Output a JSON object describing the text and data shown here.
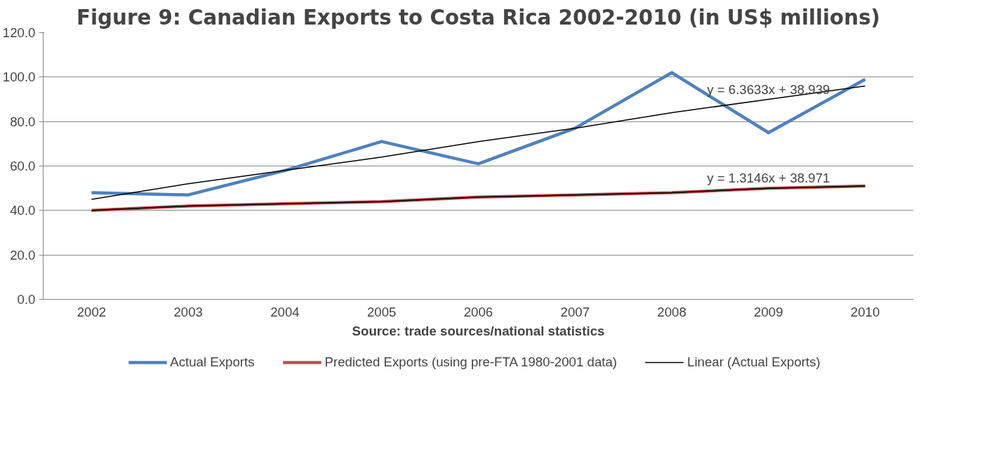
{
  "chart_data": {
    "type": "line",
    "title": "Figure 9: Canadian Exports to Costa Rica 2002-2010 (in US$ millions)",
    "categories": [
      "2002",
      "2003",
      "2004",
      "2005",
      "2006",
      "2007",
      "2008",
      "2009",
      "2010"
    ],
    "series": [
      {
        "name": "Actual Exports",
        "color": "#4f81bd",
        "values": [
          48,
          47,
          58,
          71,
          61,
          77,
          102,
          75,
          99
        ]
      },
      {
        "name": "Predicted Exports (using pre-FTA 1980-2001 data)",
        "color": "#c0504d",
        "values": [
          40,
          42,
          43,
          44,
          46,
          47,
          48,
          50,
          51
        ]
      },
      {
        "name": "Linear (Actual Exports)",
        "color": "#000000",
        "values": [
          45,
          52,
          58,
          64,
          71,
          77,
          84,
          90,
          96
        ]
      },
      {
        "color": "#000000",
        "values": [
          40,
          42,
          43,
          44,
          46,
          47,
          48,
          50,
          51
        ]
      }
    ],
    "ylim": [
      0,
      120
    ],
    "yticks": [
      {
        "value": 0,
        "label": "0.0"
      },
      {
        "value": 20,
        "label": "20.0"
      },
      {
        "value": 40,
        "label": "40.0"
      },
      {
        "value": 60,
        "label": "60.0"
      },
      {
        "value": 80,
        "label": "80.0"
      },
      {
        "value": 100,
        "label": "100.0"
      },
      {
        "value": 120,
        "label": "120.0"
      }
    ],
    "grid": "y",
    "legend": "bottom",
    "marker": "none",
    "annotations": [
      "y = 6.3633x + 38.939",
      "y = 1.3146x + 38.971",
      "Source: trade sources/national statistics"
    ]
  }
}
